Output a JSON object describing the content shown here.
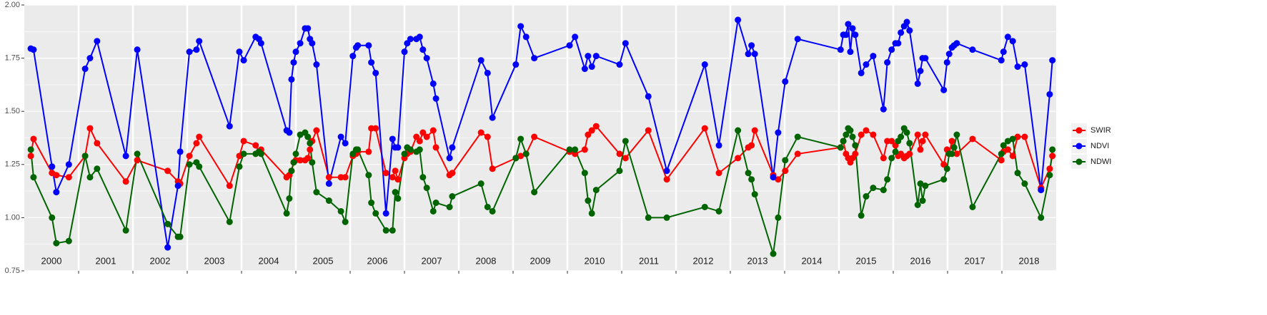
{
  "chart_data": {
    "type": "line",
    "x": [
      2000.12,
      2000.17,
      2000.51,
      2000.59,
      2000.82,
      2001.12,
      2001.21,
      2001.34,
      2001.87,
      2002.08,
      2002.64,
      2002.83,
      2002.87,
      2003.04,
      2003.17,
      2003.22,
      2003.78,
      2003.96,
      2004.04,
      2004.26,
      2004.32,
      2004.36,
      2004.83,
      2004.88,
      2004.92,
      2004.96,
      2005.0,
      2005.08,
      2005.17,
      2005.22,
      2005.26,
      2005.3,
      2005.38,
      2005.61,
      2005.83,
      2005.91,
      2006.05,
      2006.11,
      2006.14,
      2006.34,
      2006.39,
      2006.47,
      2006.66,
      2006.78,
      2006.83,
      2006.88,
      2007.0,
      2007.05,
      2007.11,
      2007.22,
      2007.28,
      2007.34,
      2007.41,
      2007.53,
      2007.58,
      2007.83,
      2007.88,
      2008.41,
      2008.53,
      2008.62,
      2009.05,
      2009.14,
      2009.24,
      2009.39,
      2010.04,
      2010.14,
      2010.32,
      2010.38,
      2010.45,
      2010.53,
      2010.96,
      2011.07,
      2011.49,
      2011.83,
      2012.53,
      2012.79,
      2013.14,
      2013.33,
      2013.39,
      2013.45,
      2013.79,
      2013.88,
      2014.01,
      2014.24,
      2015.03,
      2015.08,
      2015.13,
      2015.17,
      2015.21,
      2015.25,
      2015.3,
      2015.41,
      2015.5,
      2015.63,
      2015.82,
      2015.89,
      2015.97,
      2016.04,
      2016.09,
      2016.14,
      2016.2,
      2016.25,
      2016.3,
      2016.45,
      2016.5,
      2016.54,
      2016.59,
      2016.93,
      2016.99,
      2017.03,
      2017.08,
      2017.12,
      2017.17,
      2017.46,
      2017.99,
      2018.03,
      2018.11,
      2018.2,
      2018.29,
      2018.42,
      2018.72,
      2018.88,
      2018.93
    ],
    "series": [
      {
        "name": "SWIR",
        "color": "#ff0000",
        "values": [
          1.29,
          1.37,
          1.21,
          1.2,
          1.19,
          1.29,
          1.42,
          1.35,
          1.17,
          1.27,
          1.22,
          1.17,
          1.16,
          1.29,
          1.35,
          1.38,
          1.15,
          1.29,
          1.36,
          1.34,
          1.31,
          1.32,
          1.19,
          1.2,
          1.22,
          1.26,
          1.27,
          1.27,
          1.27,
          1.28,
          1.32,
          1.36,
          1.41,
          1.19,
          1.19,
          1.19,
          1.29,
          1.3,
          1.31,
          1.31,
          1.42,
          1.42,
          1.21,
          1.19,
          1.22,
          1.18,
          1.28,
          1.3,
          1.31,
          1.38,
          1.36,
          1.4,
          1.38,
          1.41,
          1.33,
          1.2,
          1.21,
          1.4,
          1.38,
          1.23,
          1.28,
          1.29,
          1.3,
          1.38,
          1.31,
          1.3,
          1.32,
          1.39,
          1.41,
          1.43,
          1.3,
          1.28,
          1.41,
          1.18,
          1.42,
          1.21,
          1.28,
          1.33,
          1.34,
          1.41,
          1.2,
          1.18,
          1.22,
          1.3,
          1.33,
          1.36,
          1.3,
          1.28,
          1.26,
          1.28,
          1.3,
          1.39,
          1.41,
          1.39,
          1.28,
          1.36,
          1.36,
          1.34,
          1.29,
          1.3,
          1.28,
          1.29,
          1.3,
          1.39,
          1.32,
          1.36,
          1.39,
          1.25,
          1.32,
          1.3,
          1.36,
          1.33,
          1.3,
          1.37,
          1.27,
          1.31,
          1.32,
          1.29,
          1.38,
          1.38,
          1.14,
          1.23,
          1.29
        ]
      },
      {
        "name": "NDVI",
        "color": "#0000ff",
        "values": [
          1.795,
          1.79,
          1.24,
          1.12,
          1.25,
          1.7,
          1.75,
          1.83,
          1.29,
          1.79,
          0.86,
          1.15,
          1.31,
          1.78,
          1.79,
          1.83,
          1.43,
          1.78,
          1.74,
          1.85,
          1.84,
          1.82,
          1.41,
          1.4,
          1.65,
          1.73,
          1.78,
          1.82,
          1.89,
          1.89,
          1.84,
          1.82,
          1.72,
          1.16,
          1.38,
          1.35,
          1.76,
          1.8,
          1.81,
          1.81,
          1.73,
          1.68,
          1.02,
          1.37,
          1.33,
          1.33,
          1.78,
          1.82,
          1.84,
          1.84,
          1.85,
          1.79,
          1.75,
          1.63,
          1.56,
          1.28,
          1.33,
          1.74,
          1.68,
          1.47,
          1.72,
          1.9,
          1.85,
          1.75,
          1.81,
          1.85,
          1.7,
          1.76,
          1.71,
          1.76,
          1.72,
          1.82,
          1.57,
          1.22,
          1.72,
          1.34,
          1.93,
          1.77,
          1.81,
          1.77,
          1.19,
          1.4,
          1.64,
          1.84,
          1.79,
          1.86,
          1.86,
          1.91,
          1.78,
          1.89,
          1.86,
          1.68,
          1.72,
          1.76,
          1.51,
          1.73,
          1.79,
          1.82,
          1.82,
          1.87,
          1.9,
          1.92,
          1.88,
          1.63,
          1.69,
          1.75,
          1.75,
          1.6,
          1.73,
          1.77,
          1.8,
          1.81,
          1.82,
          1.79,
          1.74,
          1.78,
          1.85,
          1.83,
          1.71,
          1.72,
          1.13,
          1.58,
          1.74
        ]
      },
      {
        "name": "NDWI",
        "color": "#006400",
        "values": [
          1.32,
          1.19,
          1.0,
          0.88,
          0.89,
          1.29,
          1.19,
          1.23,
          0.94,
          1.3,
          0.97,
          0.91,
          0.91,
          1.25,
          1.26,
          1.24,
          0.98,
          1.24,
          1.3,
          1.3,
          1.31,
          1.3,
          1.02,
          1.09,
          1.22,
          1.26,
          1.3,
          1.39,
          1.4,
          1.38,
          1.35,
          1.26,
          1.12,
          1.08,
          1.03,
          0.98,
          1.3,
          1.32,
          1.32,
          1.2,
          1.07,
          1.02,
          0.94,
          0.94,
          1.12,
          1.09,
          1.3,
          1.33,
          1.32,
          1.31,
          1.32,
          1.19,
          1.14,
          1.03,
          1.07,
          1.05,
          1.1,
          1.16,
          1.05,
          1.03,
          1.28,
          1.37,
          1.3,
          1.12,
          1.32,
          1.32,
          1.21,
          1.08,
          1.02,
          1.13,
          1.22,
          1.36,
          1.0,
          1.0,
          1.05,
          1.03,
          1.41,
          1.21,
          1.18,
          1.11,
          0.83,
          1.0,
          1.27,
          1.38,
          1.33,
          1.36,
          1.39,
          1.42,
          1.41,
          1.38,
          1.34,
          1.01,
          1.1,
          1.14,
          1.13,
          1.18,
          1.28,
          1.31,
          1.36,
          1.38,
          1.42,
          1.4,
          1.35,
          1.06,
          1.16,
          1.08,
          1.15,
          1.18,
          1.23,
          1.3,
          1.3,
          1.33,
          1.39,
          1.05,
          1.3,
          1.34,
          1.36,
          1.37,
          1.21,
          1.16,
          1.0,
          1.2,
          1.32
        ]
      }
    ],
    "xlim": [
      2000,
      2019
    ],
    "xticks": [
      2001,
      2002,
      2003,
      2004,
      2005,
      2006,
      2007,
      2008,
      2009,
      2010,
      2011,
      2012,
      2013,
      2014,
      2015,
      2016,
      2017,
      2018
    ],
    "year_labels": [
      "2000",
      "2001",
      "2002",
      "2003",
      "2004",
      "2005",
      "2006",
      "2007",
      "2008",
      "2009",
      "2010",
      "2011",
      "2012",
      "2013",
      "2014",
      "2015",
      "2016",
      "2017",
      "2018"
    ],
    "ylim": [
      0.75,
      2.0
    ],
    "yticks": [
      0.75,
      {
        "value": 1.0,
        "label": "1.00"
      },
      1.25,
      {
        "value": 1.5,
        "label": "1.50"
      },
      1.75,
      {
        "value": 2.0,
        "label": "2.00"
      }
    ],
    "grid": true,
    "legend": "right"
  }
}
